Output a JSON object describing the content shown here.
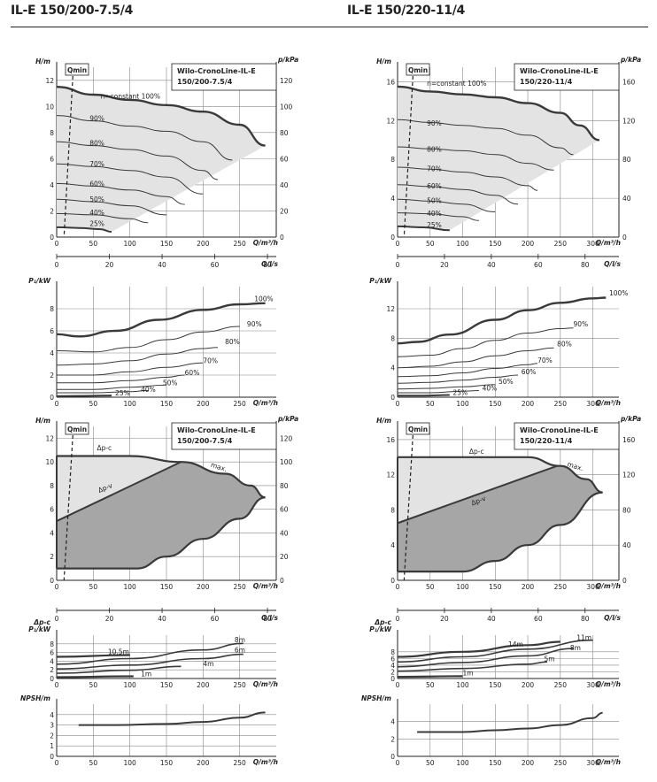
{
  "headers": {
    "left": "IL-E 150/200-7.5/4",
    "right": "IL-E 150/220-11/4"
  },
  "labels": {
    "h_axis": "H/m",
    "p_axis": "p/kPa",
    "q_axis": "Q/m³/h",
    "ql_axis": "Q/l/s",
    "p1_axis": "P₁/kW",
    "dpc_axis": "Δp-c",
    "npsh_axis": "NPSH/m",
    "qmin": "Qmin",
    "n_const": "n=constant 100%",
    "dpc": "Δp-c",
    "dpv": "Δp-v",
    "max": "max."
  },
  "colors": {
    "curve": "#3a3a3a",
    "light_fill": "#e3e3e3",
    "dark_fill": "#a6a6a6",
    "grid": "#888888"
  },
  "chart_data": [
    {
      "id": "left-speed",
      "type": "line",
      "title": "Wilo-CronoLine-IL-E 150/200-7.5/4",
      "xlabel": "Q/m³/h",
      "ylabel": "H/m",
      "y2label": "p/kPa",
      "x2label": "Q/l/s",
      "xlim": [
        0,
        300
      ],
      "ylim": [
        0,
        13
      ],
      "xticks": [
        0,
        50,
        100,
        150,
        200,
        250
      ],
      "yticks": [
        0,
        2,
        4,
        6,
        8,
        10,
        12
      ],
      "y2ticks": [
        0,
        20,
        40,
        60,
        80,
        100,
        120
      ],
      "x2ticks": [
        0,
        20,
        40,
        60,
        80
      ],
      "series": [
        {
          "name": "100%",
          "x": [
            0,
            50,
            100,
            150,
            200,
            250,
            285
          ],
          "y": [
            11.5,
            10.9,
            10.5,
            10.1,
            9.6,
            8.6,
            7.0
          ]
        },
        {
          "name": "90%",
          "x": [
            0,
            50,
            100,
            150,
            200,
            240
          ],
          "y": [
            9.3,
            8.9,
            8.5,
            8.1,
            7.3,
            5.9
          ]
        },
        {
          "name": "80%",
          "x": [
            0,
            50,
            100,
            150,
            200,
            220
          ],
          "y": [
            7.3,
            7.0,
            6.7,
            6.2,
            5.1,
            4.4
          ]
        },
        {
          "name": "70%",
          "x": [
            0,
            50,
            100,
            150,
            200
          ],
          "y": [
            5.6,
            5.4,
            5.1,
            4.6,
            3.3
          ]
        },
        {
          "name": "60%",
          "x": [
            0,
            50,
            100,
            150,
            175
          ],
          "y": [
            4.1,
            3.9,
            3.6,
            3.1,
            2.5
          ]
        },
        {
          "name": "50%",
          "x": [
            0,
            50,
            100,
            150
          ],
          "y": [
            2.9,
            2.7,
            2.4,
            1.7
          ]
        },
        {
          "name": "40%",
          "x": [
            0,
            50,
            100,
            125
          ],
          "y": [
            1.8,
            1.7,
            1.4,
            1.1
          ]
        },
        {
          "name": "25%",
          "x": [
            0,
            30,
            60,
            75
          ],
          "y": [
            0.75,
            0.7,
            0.6,
            0.4
          ]
        }
      ]
    },
    {
      "id": "left-power",
      "type": "line",
      "ylabel": "P₁/kW",
      "xlabel": "Q/m³/h",
      "xlim": [
        0,
        300
      ],
      "ylim": [
        0,
        10
      ],
      "xticks": [
        0,
        50,
        100,
        150,
        200,
        250
      ],
      "yticks": [
        0,
        2,
        4,
        6,
        8
      ],
      "series": [
        {
          "name": "100%",
          "x": [
            0,
            30,
            80,
            140,
            200,
            250,
            285
          ],
          "y": [
            5.7,
            5.5,
            6.0,
            7.0,
            7.9,
            8.4,
            8.5
          ]
        },
        {
          "name": "90%",
          "x": [
            0,
            50,
            100,
            150,
            200,
            250
          ],
          "y": [
            4.2,
            4.1,
            4.5,
            5.2,
            5.9,
            6.4
          ]
        },
        {
          "name": "80%",
          "x": [
            0,
            50,
            100,
            150,
            200,
            220
          ],
          "y": [
            2.9,
            3.0,
            3.3,
            3.9,
            4.4,
            4.5
          ]
        },
        {
          "name": "70%",
          "x": [
            0,
            50,
            100,
            150,
            200
          ],
          "y": [
            2.0,
            2.0,
            2.3,
            2.7,
            3.1
          ]
        },
        {
          "name": "60%",
          "x": [
            0,
            50,
            100,
            150,
            175
          ],
          "y": [
            1.3,
            1.3,
            1.5,
            1.8,
            2.0
          ]
        },
        {
          "name": "50%",
          "x": [
            0,
            50,
            100,
            150
          ],
          "y": [
            0.7,
            0.7,
            0.9,
            1.1
          ]
        },
        {
          "name": "40%",
          "x": [
            0,
            50,
            100,
            125
          ],
          "y": [
            0.4,
            0.4,
            0.5,
            0.6
          ]
        },
        {
          "name": "25%",
          "x": [
            0,
            40,
            75
          ],
          "y": [
            0.1,
            0.12,
            0.15
          ]
        }
      ]
    },
    {
      "id": "left-control",
      "type": "area",
      "title": "Wilo-CronoLine-IL-E 150/200-7.5/4",
      "xlabel": "Q/m³/h",
      "ylabel": "H/m",
      "y2label": "p/kPa",
      "x2label": "Q/l/s",
      "xlim": [
        0,
        300
      ],
      "ylim": [
        0,
        13
      ],
      "xticks": [
        0,
        50,
        100,
        150,
        200,
        250
      ],
      "yticks": [
        0,
        2,
        4,
        6,
        8,
        10,
        12
      ],
      "y2ticks": [
        0,
        20,
        40,
        60,
        80,
        100,
        120
      ],
      "x2ticks": [
        0,
        20,
        40,
        60,
        80
      ],
      "max_curve": {
        "x": [
          0,
          100,
          170,
          230,
          265,
          285
        ],
        "y": [
          10.5,
          10.5,
          10.0,
          9.0,
          8.0,
          7.0
        ]
      },
      "min_curve": {
        "x": [
          0,
          110,
          150,
          200,
          250,
          285
        ],
        "y": [
          1.0,
          1.0,
          2.0,
          3.5,
          5.2,
          7.0
        ]
      },
      "dp_v_line": {
        "x": [
          0,
          170
        ],
        "y": [
          5.0,
          10.0
        ]
      },
      "series": [
        {
          "name": "Δp-c",
          "x": [
            0,
            170
          ],
          "y": [
            10.5,
            10.5
          ]
        },
        {
          "name": "Δp-v",
          "x": [
            0,
            170
          ],
          "y": [
            5.0,
            10.0
          ]
        }
      ]
    },
    {
      "id": "left-control-power",
      "type": "line",
      "xlabel": "Q/m³/h",
      "ylabel": "P₁/kW",
      "xlim": [
        0,
        300
      ],
      "ylim": [
        0,
        10
      ],
      "xticks": [
        0,
        50,
        100,
        150,
        200,
        250
      ],
      "yticks": [
        0,
        2,
        4,
        6,
        8
      ],
      "series": [
        {
          "name": "10.5m",
          "x": [
            0,
            100
          ],
          "y": [
            5.0,
            5.4
          ]
        },
        {
          "name": "8m",
          "x": [
            0,
            100,
            200,
            255
          ],
          "y": [
            3.3,
            4.6,
            6.6,
            8.1
          ]
        },
        {
          "name": "6m",
          "x": [
            0,
            100,
            200,
            255
          ],
          "y": [
            2.2,
            3.1,
            4.6,
            5.6
          ]
        },
        {
          "name": "4m",
          "x": [
            0,
            100,
            170
          ],
          "y": [
            1.2,
            1.9,
            2.8
          ]
        },
        {
          "name": "1m",
          "x": [
            0,
            105
          ],
          "y": [
            0.3,
            0.5
          ]
        }
      ]
    },
    {
      "id": "left-npsh",
      "type": "line",
      "xlabel": "Q/m³/h",
      "ylabel": "NPSH/m",
      "xlim": [
        0,
        300
      ],
      "ylim": [
        0,
        5
      ],
      "xticks": [
        0,
        50,
        100,
        150,
        200,
        250
      ],
      "yticks": [
        0,
        1,
        2,
        3,
        4
      ],
      "series": [
        {
          "name": "NPSH",
          "x": [
            30,
            80,
            150,
            200,
            250,
            285
          ],
          "y": [
            3.0,
            3.0,
            3.1,
            3.3,
            3.7,
            4.2
          ]
        }
      ]
    },
    {
      "id": "right-speed",
      "type": "line",
      "title": "Wilo-CronoLine-IL-E 150/220-11/4",
      "xlabel": "Q/m³/h",
      "ylabel": "H/m",
      "y2label": "p/kPa",
      "x2label": "Q/l/s",
      "xlim": [
        0,
        340
      ],
      "ylim": [
        0,
        17.5
      ],
      "xticks": [
        0,
        50,
        100,
        150,
        200,
        250,
        300
      ],
      "yticks": [
        0,
        4,
        8,
        12,
        16
      ],
      "y2ticks": [
        0,
        40,
        80,
        120,
        160
      ],
      "x2ticks": [
        0,
        20,
        40,
        60,
        80
      ],
      "series": [
        {
          "name": "100%",
          "x": [
            0,
            50,
            100,
            150,
            200,
            250,
            280,
            310
          ],
          "y": [
            15.5,
            15.0,
            14.7,
            14.4,
            13.8,
            12.8,
            11.5,
            10.0
          ]
        },
        {
          "name": "90%",
          "x": [
            0,
            50,
            100,
            150,
            200,
            250,
            270
          ],
          "y": [
            12.1,
            11.8,
            11.5,
            11.2,
            10.5,
            9.2,
            8.5
          ]
        },
        {
          "name": "80%",
          "x": [
            0,
            50,
            100,
            150,
            200,
            240
          ],
          "y": [
            9.3,
            9.1,
            8.9,
            8.5,
            7.6,
            6.9
          ]
        },
        {
          "name": "70%",
          "x": [
            0,
            50,
            100,
            150,
            200,
            215
          ],
          "y": [
            7.2,
            7.0,
            6.7,
            6.2,
            5.3,
            4.8
          ]
        },
        {
          "name": "60%",
          "x": [
            0,
            50,
            100,
            150,
            185
          ],
          "y": [
            5.4,
            5.2,
            4.9,
            4.3,
            3.4
          ]
        },
        {
          "name": "50%",
          "x": [
            0,
            50,
            100,
            150
          ],
          "y": [
            3.9,
            3.7,
            3.4,
            2.6
          ]
        },
        {
          "name": "40%",
          "x": [
            0,
            50,
            100,
            125
          ],
          "y": [
            2.5,
            2.4,
            2.1,
            1.7
          ]
        },
        {
          "name": "25%",
          "x": [
            0,
            40,
            80
          ],
          "y": [
            1.1,
            1.0,
            0.7
          ]
        }
      ]
    },
    {
      "id": "right-power",
      "type": "line",
      "xlabel": "Q/m³/h",
      "ylabel": "P₁/kW",
      "xlim": [
        0,
        340
      ],
      "ylim": [
        0,
        15
      ],
      "xticks": [
        0,
        50,
        100,
        150,
        200,
        250,
        300
      ],
      "yticks": [
        0,
        4,
        8,
        12
      ],
      "series": [
        {
          "name": "100%",
          "x": [
            0,
            30,
            80,
            150,
            200,
            250,
            300,
            320
          ],
          "y": [
            7.3,
            7.5,
            8.5,
            10.5,
            11.8,
            12.8,
            13.4,
            13.5
          ]
        },
        {
          "name": "90%",
          "x": [
            0,
            50,
            100,
            150,
            200,
            250,
            270
          ],
          "y": [
            5.5,
            5.7,
            6.6,
            7.7,
            8.7,
            9.3,
            9.4
          ]
        },
        {
          "name": "80%",
          "x": [
            0,
            50,
            100,
            150,
            200,
            240
          ],
          "y": [
            4.0,
            4.2,
            4.8,
            5.6,
            6.3,
            6.7
          ]
        },
        {
          "name": "70%",
          "x": [
            0,
            50,
            100,
            150,
            200,
            215
          ],
          "y": [
            2.8,
            2.9,
            3.3,
            3.9,
            4.4,
            4.6
          ]
        },
        {
          "name": "60%",
          "x": [
            0,
            50,
            100,
            150,
            185
          ],
          "y": [
            1.9,
            2.0,
            2.3,
            2.7,
            3.0
          ]
        },
        {
          "name": "50%",
          "x": [
            0,
            50,
            100,
            150
          ],
          "y": [
            1.1,
            1.2,
            1.4,
            1.7
          ]
        },
        {
          "name": "40%",
          "x": [
            0,
            50,
            100,
            125
          ],
          "y": [
            0.6,
            0.6,
            0.8,
            0.9
          ]
        },
        {
          "name": "25%",
          "x": [
            0,
            40,
            80
          ],
          "y": [
            0.2,
            0.2,
            0.3
          ]
        }
      ]
    },
    {
      "id": "right-control",
      "type": "area",
      "title": "Wilo-CronoLine-IL-E 150/220-11/4",
      "xlabel": "Q/m³/h",
      "ylabel": "H/m",
      "y2label": "p/kPa",
      "x2label": "Q/l/s",
      "xlim": [
        0,
        340
      ],
      "ylim": [
        0,
        17.5
      ],
      "xticks": [
        0,
        50,
        100,
        150,
        200,
        250,
        300
      ],
      "yticks": [
        0,
        4,
        8,
        12,
        16
      ],
      "y2ticks": [
        0,
        40,
        80,
        120,
        160
      ],
      "x2ticks": [
        0,
        20,
        40,
        60,
        80
      ],
      "max_curve": {
        "x": [
          0,
          200,
          250,
          290,
          315
        ],
        "y": [
          14.0,
          14.0,
          13.0,
          11.5,
          10.0
        ]
      },
      "min_curve": {
        "x": [
          0,
          100,
          150,
          200,
          250,
          315
        ],
        "y": [
          1.0,
          1.0,
          2.2,
          4.0,
          6.3,
          10.0
        ]
      },
      "dp_v_line": {
        "x": [
          0,
          245
        ],
        "y": [
          6.5,
          13.0
        ]
      },
      "series": [
        {
          "name": "Δp-c",
          "x": [
            0,
            200
          ],
          "y": [
            14.0,
            14.0
          ]
        },
        {
          "name": "Δp-v",
          "x": [
            0,
            245
          ],
          "y": [
            6.5,
            13.0
          ]
        }
      ]
    },
    {
      "id": "right-control-power",
      "type": "line",
      "xlabel": "Q/m³/h",
      "ylabel": "P₁/kW",
      "xlim": [
        0,
        340
      ],
      "ylim": [
        0,
        13
      ],
      "xticks": [
        0,
        50,
        100,
        150,
        200,
        250,
        300
      ],
      "yticks": [
        0,
        2,
        4,
        6,
        8
      ],
      "series": [
        {
          "name": "14m",
          "x": [
            0,
            100,
            200,
            250
          ],
          "y": [
            6.5,
            8.0,
            10.0,
            11.0
          ]
        },
        {
          "name": "11m",
          "x": [
            0,
            100,
            200,
            300
          ],
          "y": [
            5.0,
            6.5,
            8.8,
            11.5
          ]
        },
        {
          "name": "8m",
          "x": [
            0,
            100,
            200,
            270
          ],
          "y": [
            3.5,
            4.8,
            6.8,
            9.0
          ]
        },
        {
          "name": "5m",
          "x": [
            0,
            100,
            200,
            230
          ],
          "y": [
            2.2,
            3.0,
            4.3,
            5.0
          ]
        },
        {
          "name": "1m",
          "x": [
            0,
            100
          ],
          "y": [
            0.5,
            0.7
          ]
        }
      ]
    },
    {
      "id": "right-npsh",
      "type": "line",
      "xlabel": "Q/m³/h",
      "ylabel": "NPSH/m",
      "xlim": [
        0,
        340
      ],
      "ylim": [
        0,
        6
      ],
      "xticks": [
        0,
        50,
        100,
        150,
        200,
        250,
        300
      ],
      "yticks": [
        0,
        2,
        4
      ],
      "series": [
        {
          "name": "NPSH",
          "x": [
            30,
            100,
            150,
            200,
            250,
            300,
            315
          ],
          "y": [
            2.8,
            2.8,
            3.0,
            3.2,
            3.6,
            4.4,
            5.0
          ]
        }
      ]
    }
  ]
}
